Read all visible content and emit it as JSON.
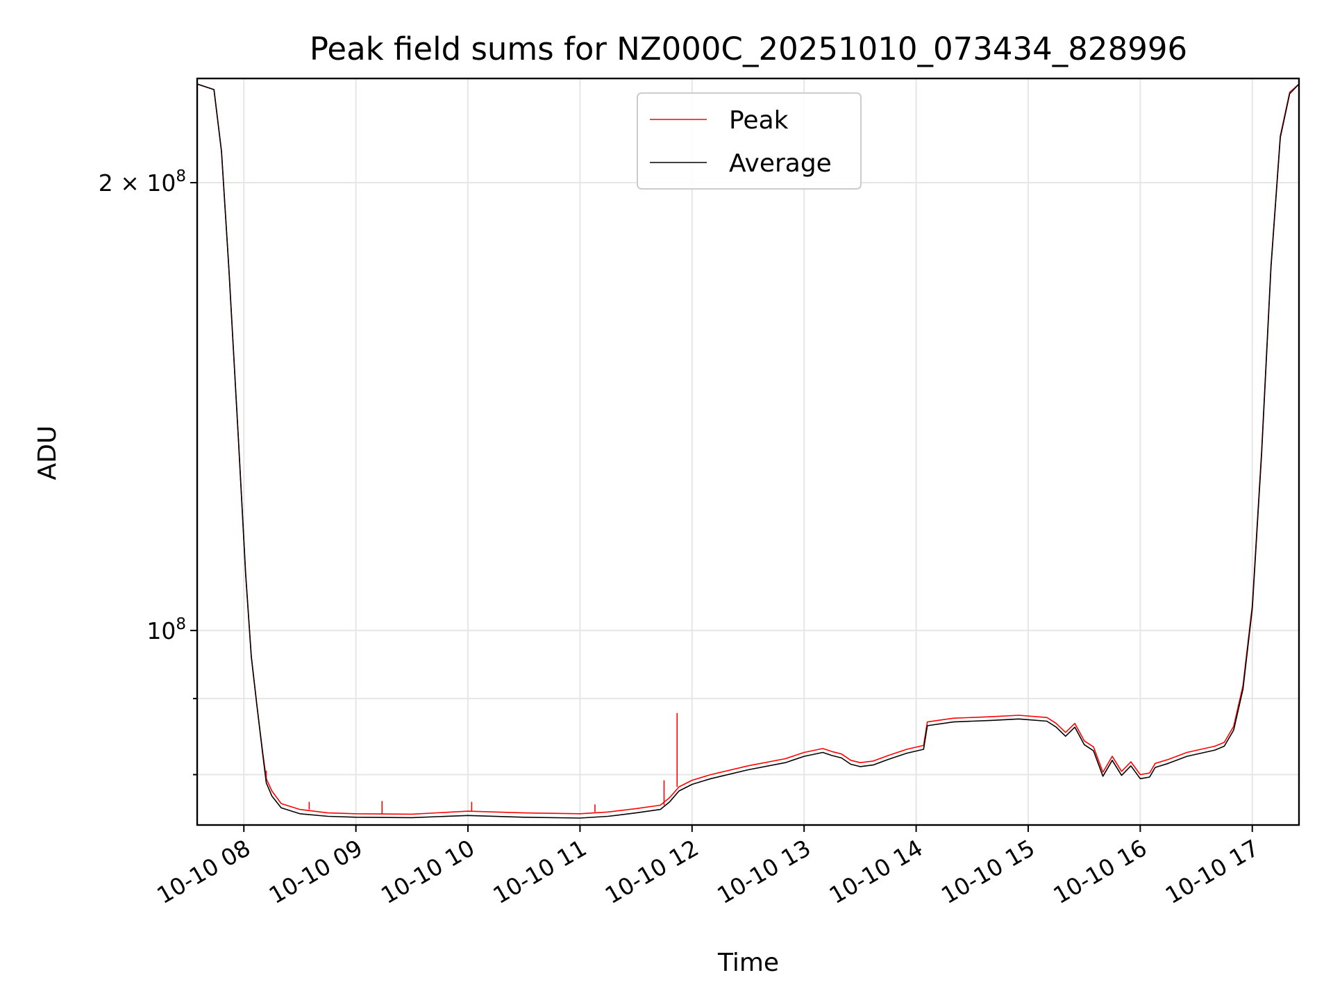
{
  "chart_data": {
    "type": "line",
    "title": "Peak field sums for NZ000C_20251010_073434_828996",
    "xlabel": "Time",
    "ylabel": "ADU",
    "yscale": "log",
    "grid": true,
    "legend_position": "top-center",
    "xlim": [
      "2025-10-10 07:35",
      "2025-10-10 17:25"
    ],
    "ylim": [
      74000000,
      235000000
    ],
    "x_ticks": [
      {
        "x": "2025-10-10 08:00",
        "label": "10-10 08"
      },
      {
        "x": "2025-10-10 09:00",
        "label": "10-10 09"
      },
      {
        "x": "2025-10-10 10:00",
        "label": "10-10 10"
      },
      {
        "x": "2025-10-10 11:00",
        "label": "10-10 11"
      },
      {
        "x": "2025-10-10 12:00",
        "label": "10-10 12"
      },
      {
        "x": "2025-10-10 13:00",
        "label": "10-10 13"
      },
      {
        "x": "2025-10-10 14:00",
        "label": "10-10 14"
      },
      {
        "x": "2025-10-10 15:00",
        "label": "10-10 15"
      },
      {
        "x": "2025-10-10 16:00",
        "label": "10-10 16"
      },
      {
        "x": "2025-10-10 17:00",
        "label": "10-10 17"
      }
    ],
    "y_major_ticks": [
      {
        "y": 100000000,
        "base": "10",
        "exp": "8",
        "coef": ""
      },
      {
        "y": 200000000,
        "base": "10",
        "exp": "8",
        "coef": "2 × "
      }
    ],
    "y_minor_ticks": [
      80000000,
      90000000
    ],
    "series": [
      {
        "name": "Peak",
        "color": "#ff0000",
        "points": [
          [
            "2025-10-10 07:35",
            233000000
          ],
          [
            "2025-10-10 07:44",
            231000000
          ],
          [
            "2025-10-10 07:48",
            210000000
          ],
          [
            "2025-10-10 07:52",
            175000000
          ],
          [
            "2025-10-10 07:57",
            135000000
          ],
          [
            "2025-10-10 08:01",
            109000000
          ],
          [
            "2025-10-10 08:04",
            96000000
          ],
          [
            "2025-10-10 08:07",
            89000000
          ],
          [
            "2025-10-10 08:10",
            83000000
          ],
          [
            "2025-10-10 08:12",
            79500000
          ],
          [
            "2025-10-10 08:15",
            78000000
          ],
          [
            "2025-10-10 08:20",
            76500000
          ],
          [
            "2025-10-10 08:30",
            75800000
          ],
          [
            "2025-10-10 08:45",
            75400000
          ],
          [
            "2025-10-10 09:00",
            75300000
          ],
          [
            "2025-10-10 09:30",
            75250000
          ],
          [
            "2025-10-10 10:00",
            75600000
          ],
          [
            "2025-10-10 10:30",
            75400000
          ],
          [
            "2025-10-10 11:00",
            75300000
          ],
          [
            "2025-10-10 11:15",
            75500000
          ],
          [
            "2025-10-10 11:30",
            75900000
          ],
          [
            "2025-10-10 11:43",
            76300000
          ],
          [
            "2025-10-10 11:48",
            77200000
          ],
          [
            "2025-10-10 11:53",
            78500000
          ],
          [
            "2025-10-10 12:00",
            79300000
          ],
          [
            "2025-10-10 12:10",
            80000000
          ],
          [
            "2025-10-10 12:30",
            81100000
          ],
          [
            "2025-10-10 12:50",
            82000000
          ],
          [
            "2025-10-10 13:00",
            82800000
          ],
          [
            "2025-10-10 13:10",
            83300000
          ],
          [
            "2025-10-10 13:15",
            82900000
          ],
          [
            "2025-10-10 13:20",
            82600000
          ],
          [
            "2025-10-10 13:25",
            81800000
          ],
          [
            "2025-10-10 13:30",
            81500000
          ],
          [
            "2025-10-10 13:37",
            81700000
          ],
          [
            "2025-10-10 13:45",
            82400000
          ],
          [
            "2025-10-10 13:55",
            83200000
          ],
          [
            "2025-10-10 14:04",
            83700000
          ],
          [
            "2025-10-10 14:06",
            86800000
          ],
          [
            "2025-10-10 14:20",
            87300000
          ],
          [
            "2025-10-10 14:40",
            87500000
          ],
          [
            "2025-10-10 14:55",
            87700000
          ],
          [
            "2025-10-10 15:10",
            87400000
          ],
          [
            "2025-10-10 15:15",
            86600000
          ],
          [
            "2025-10-10 15:20",
            85400000
          ],
          [
            "2025-10-10 15:25",
            86600000
          ],
          [
            "2025-10-10 15:30",
            84300000
          ],
          [
            "2025-10-10 15:35",
            83500000
          ],
          [
            "2025-10-10 15:40",
            80300000
          ],
          [
            "2025-10-10 15:45",
            82300000
          ],
          [
            "2025-10-10 15:50",
            80400000
          ],
          [
            "2025-10-10 15:55",
            81600000
          ],
          [
            "2025-10-10 16:00",
            80000000
          ],
          [
            "2025-10-10 16:05",
            80200000
          ],
          [
            "2025-10-10 16:08",
            81400000
          ],
          [
            "2025-10-10 16:15",
            81900000
          ],
          [
            "2025-10-10 16:25",
            82800000
          ],
          [
            "2025-10-10 16:40",
            83600000
          ],
          [
            "2025-10-10 16:45",
            84100000
          ],
          [
            "2025-10-10 16:50",
            86200000
          ],
          [
            "2025-10-10 16:55",
            91800000
          ],
          [
            "2025-10-10 17:00",
            104000000
          ],
          [
            "2025-10-10 17:05",
            132000000
          ],
          [
            "2025-10-10 17:10",
            176000000
          ],
          [
            "2025-10-10 17:15",
            215000000
          ],
          [
            "2025-10-10 17:20",
            230000000
          ],
          [
            "2025-10-10 17:25",
            233000000
          ]
        ],
        "spikes": [
          [
            "2025-10-10 08:12",
            80500000
          ],
          [
            "2025-10-10 08:35",
            76700000
          ],
          [
            "2025-10-10 09:14",
            76800000
          ],
          [
            "2025-10-10 10:02",
            76700000
          ],
          [
            "2025-10-10 11:08",
            76400000
          ],
          [
            "2025-10-10 11:45",
            79300000
          ],
          [
            "2025-10-10 11:52",
            88000000
          ]
        ]
      },
      {
        "name": "Average",
        "color": "#000000",
        "points": [
          [
            "2025-10-10 07:35",
            233000000
          ],
          [
            "2025-10-10 07:44",
            231000000
          ],
          [
            "2025-10-10 07:48",
            210000000
          ],
          [
            "2025-10-10 07:52",
            175000000
          ],
          [
            "2025-10-10 07:57",
            135000000
          ],
          [
            "2025-10-10 08:01",
            109000000
          ],
          [
            "2025-10-10 08:04",
            96000000
          ],
          [
            "2025-10-10 08:07",
            89000000
          ],
          [
            "2025-10-10 08:10",
            82800000
          ],
          [
            "2025-10-10 08:12",
            79000000
          ],
          [
            "2025-10-10 08:15",
            77400000
          ],
          [
            "2025-10-10 08:20",
            76000000
          ],
          [
            "2025-10-10 08:30",
            75300000
          ],
          [
            "2025-10-10 08:45",
            75000000
          ],
          [
            "2025-10-10 09:00",
            74900000
          ],
          [
            "2025-10-10 09:30",
            74850000
          ],
          [
            "2025-10-10 10:00",
            75100000
          ],
          [
            "2025-10-10 10:30",
            74900000
          ],
          [
            "2025-10-10 11:00",
            74800000
          ],
          [
            "2025-10-10 11:15",
            75000000
          ],
          [
            "2025-10-10 11:30",
            75400000
          ],
          [
            "2025-10-10 11:43",
            75800000
          ],
          [
            "2025-10-10 11:48",
            76700000
          ],
          [
            "2025-10-10 11:53",
            78000000
          ],
          [
            "2025-10-10 12:00",
            78800000
          ],
          [
            "2025-10-10 12:10",
            79500000
          ],
          [
            "2025-10-10 12:30",
            80600000
          ],
          [
            "2025-10-10 12:50",
            81500000
          ],
          [
            "2025-10-10 13:00",
            82300000
          ],
          [
            "2025-10-10 13:10",
            82800000
          ],
          [
            "2025-10-10 13:15",
            82400000
          ],
          [
            "2025-10-10 13:20",
            82100000
          ],
          [
            "2025-10-10 13:25",
            81300000
          ],
          [
            "2025-10-10 13:30",
            81000000
          ],
          [
            "2025-10-10 13:37",
            81200000
          ],
          [
            "2025-10-10 13:45",
            81900000
          ],
          [
            "2025-10-10 13:55",
            82700000
          ],
          [
            "2025-10-10 14:04",
            83200000
          ],
          [
            "2025-10-10 14:06",
            86300000
          ],
          [
            "2025-10-10 14:20",
            86800000
          ],
          [
            "2025-10-10 14:40",
            87000000
          ],
          [
            "2025-10-10 14:55",
            87200000
          ],
          [
            "2025-10-10 15:10",
            86900000
          ],
          [
            "2025-10-10 15:15",
            86100000
          ],
          [
            "2025-10-10 15:20",
            84900000
          ],
          [
            "2025-10-10 15:25",
            86100000
          ],
          [
            "2025-10-10 15:30",
            83800000
          ],
          [
            "2025-10-10 15:35",
            83000000
          ],
          [
            "2025-10-10 15:40",
            79800000
          ],
          [
            "2025-10-10 15:45",
            81800000
          ],
          [
            "2025-10-10 15:50",
            79900000
          ],
          [
            "2025-10-10 15:55",
            81100000
          ],
          [
            "2025-10-10 16:00",
            79500000
          ],
          [
            "2025-10-10 16:05",
            79700000
          ],
          [
            "2025-10-10 16:08",
            80900000
          ],
          [
            "2025-10-10 16:15",
            81400000
          ],
          [
            "2025-10-10 16:25",
            82300000
          ],
          [
            "2025-10-10 16:40",
            83100000
          ],
          [
            "2025-10-10 16:45",
            83600000
          ],
          [
            "2025-10-10 16:50",
            85700000
          ],
          [
            "2025-10-10 16:55",
            91300000
          ],
          [
            "2025-10-10 17:00",
            103500000
          ],
          [
            "2025-10-10 17:05",
            131500000
          ],
          [
            "2025-10-10 17:10",
            175500000
          ],
          [
            "2025-10-10 17:15",
            214500000
          ],
          [
            "2025-10-10 17:20",
            229500000
          ],
          [
            "2025-10-10 17:25",
            233000000
          ]
        ]
      }
    ]
  }
}
